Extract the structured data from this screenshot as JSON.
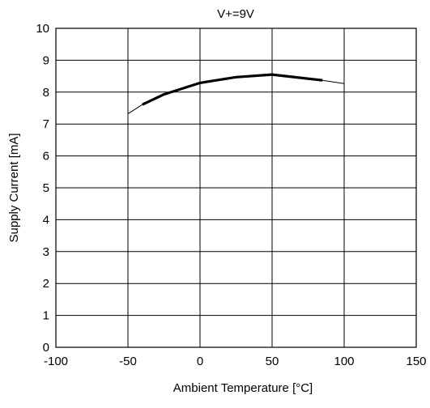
{
  "chart_data": {
    "type": "line",
    "title": "V+=9V",
    "xlabel": "Ambient Temperature [°C]",
    "ylabel": "Supply Current [mA]",
    "xlim": [
      -100,
      150
    ],
    "ylim": [
      0,
      10
    ],
    "xticks": [
      -100,
      -50,
      0,
      50,
      100,
      150
    ],
    "yticks": [
      0,
      1,
      2,
      3,
      4,
      5,
      6,
      7,
      8,
      9,
      10
    ],
    "xtick_labels": [
      "-100",
      "-50",
      "0",
      "50",
      "100",
      "150"
    ],
    "ytick_labels": [
      "0",
      "1",
      "2",
      "3",
      "4",
      "5",
      "6",
      "7",
      "8",
      "9",
      "10"
    ],
    "grid": true,
    "legend": "none",
    "series": [
      {
        "style": "thin",
        "color": "#000000",
        "points": [
          [
            -50,
            7.32
          ],
          [
            -40,
            7.61
          ]
        ]
      },
      {
        "style": "thick",
        "color": "#000000",
        "points": [
          [
            -40,
            7.61
          ],
          [
            -25,
            7.93
          ],
          [
            0,
            8.29
          ],
          [
            25,
            8.47
          ],
          [
            50,
            8.55
          ],
          [
            85,
            8.37
          ]
        ]
      },
      {
        "style": "thin",
        "color": "#000000",
        "points": [
          [
            85,
            8.37
          ],
          [
            100,
            8.27
          ]
        ]
      }
    ]
  }
}
